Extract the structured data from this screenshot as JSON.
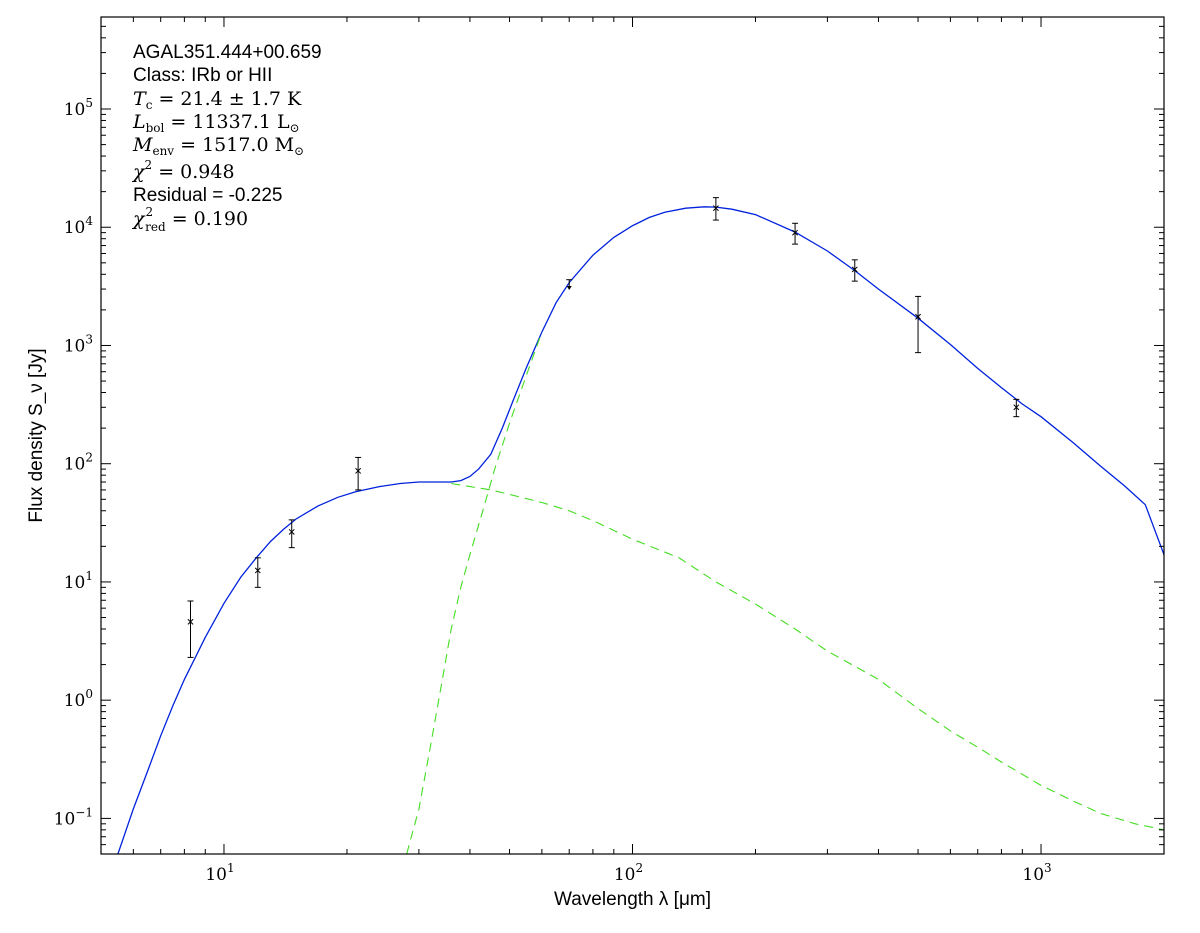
{
  "chart_data": {
    "type": "scatter",
    "title": "",
    "xlabel": "Wavelength λ [μm]",
    "ylabel": "Flux density S_ν [Jy]",
    "xscale": "log",
    "yscale": "log",
    "xlim": [
      5,
      2000
    ],
    "ylim": [
      0.05,
      600000
    ],
    "grid": false,
    "legend": "none",
    "x_ticks": [
      {
        "value": 10,
        "base": "10",
        "exp": "1"
      },
      {
        "value": 100,
        "base": "10",
        "exp": "2"
      },
      {
        "value": 1000,
        "base": "10",
        "exp": "3"
      }
    ],
    "y_ticks": [
      {
        "value": 0.1,
        "base": "10",
        "exp": "−1"
      },
      {
        "value": 1,
        "base": "10",
        "exp": "0"
      },
      {
        "value": 10,
        "base": "10",
        "exp": "1"
      },
      {
        "value": 100,
        "base": "10",
        "exp": "2"
      },
      {
        "value": 1000,
        "base": "10",
        "exp": "3"
      },
      {
        "value": 10000,
        "base": "10",
        "exp": "4"
      },
      {
        "value": 100000,
        "base": "10",
        "exp": "5"
      }
    ],
    "annotations": {
      "source": "AGAL351.444+00.659",
      "class": "Class: IRb or HII",
      "tc": {
        "sym": "T",
        "sub": "c",
        "text": " = 21.4 ± 1.7 K"
      },
      "lbol": {
        "sym": "L",
        "sub": "bol",
        "text": " = 11337.1 L",
        "sub2": "⊙"
      },
      "menv": {
        "sym": "M",
        "sub": "env",
        "text": " = 1517.0 M",
        "sub2": "⊙"
      },
      "chi2": {
        "sym": "χ",
        "sup": "2",
        "text": " = 0.948"
      },
      "residual": "Residual = -0.225",
      "chi2red": {
        "sym": "χ",
        "sup": "2",
        "sub": "red",
        "text": " = 0.190"
      }
    },
    "points": [
      {
        "x": 8.28,
        "y": 4.6,
        "y_low": 2.3,
        "y_high": 6.9,
        "marker": "x"
      },
      {
        "x": 12.1,
        "y": 12.5,
        "y_low": 9.0,
        "y_high": 16.0,
        "marker": "x"
      },
      {
        "x": 14.65,
        "y": 26.5,
        "y_low": 19.5,
        "y_high": 33.5,
        "marker": "x"
      },
      {
        "x": 21.3,
        "y": 87,
        "y_low": 60,
        "y_high": 113,
        "marker": "x"
      },
      {
        "x": 70,
        "y": 3600,
        "y_low": 3000,
        "marker": "upper-limit"
      },
      {
        "x": 160,
        "y": 14500,
        "y_low": 11500,
        "y_high": 17800,
        "marker": "x"
      },
      {
        "x": 250,
        "y": 9000,
        "y_low": 7200,
        "y_high": 10800,
        "marker": "x"
      },
      {
        "x": 350,
        "y": 4400,
        "y_low": 3500,
        "y_high": 5300,
        "marker": "x"
      },
      {
        "x": 500,
        "y": 1750,
        "y_low": 870,
        "y_high": 2600,
        "marker": "x"
      },
      {
        "x": 870,
        "y": 300,
        "y_low": 250,
        "y_high": 350,
        "marker": "x"
      }
    ],
    "lines": [
      {
        "role": "total-model",
        "color": "#0022dd",
        "style": "solid",
        "x": [
          5.5,
          6,
          6.5,
          7,
          7.5,
          8,
          9,
          10,
          11,
          12,
          13,
          14,
          15,
          17,
          19,
          21,
          24,
          27,
          30,
          33,
          36,
          38,
          40,
          42,
          45,
          48,
          51,
          55,
          60,
          65,
          70,
          80,
          90,
          100,
          110,
          120,
          135,
          150,
          160,
          175,
          200,
          250,
          300,
          350,
          400,
          500,
          600,
          700,
          800,
          900,
          1000,
          1200,
          1400,
          1600,
          1800,
          2000
        ],
        "y": [
          0.05,
          0.12,
          0.25,
          0.5,
          0.9,
          1.5,
          3.4,
          6.6,
          11,
          16,
          22,
          28,
          34,
          44,
          52,
          58,
          64,
          68,
          70,
          70,
          70,
          72,
          78,
          90,
          120,
          200,
          340,
          650,
          1300,
          2300,
          3400,
          5800,
          8200,
          10300,
          12100,
          13400,
          14500,
          14900,
          14800,
          14200,
          12800,
          9100,
          6300,
          4300,
          3000,
          1700,
          1020,
          640,
          440,
          320,
          250,
          150,
          95,
          65,
          45,
          17
        ]
      },
      {
        "role": "warm-component",
        "color": "#44dd22",
        "style": "dashed",
        "x": [
          36,
          40,
          45,
          50,
          60,
          70,
          80,
          100,
          130,
          160,
          200,
          250,
          300,
          400,
          500,
          600,
          700,
          800,
          1000,
          1200,
          1400,
          1700,
          2000
        ],
        "y": [
          68,
          64,
          60,
          55,
          47,
          40,
          33,
          23,
          16,
          10,
          6.5,
          4,
          2.6,
          1.5,
          0.85,
          0.55,
          0.4,
          0.3,
          0.19,
          0.14,
          0.11,
          0.09,
          0.08
        ]
      },
      {
        "role": "cold-component",
        "color": "#44dd22",
        "style": "dashed",
        "x": [
          28,
          30,
          32,
          34,
          36,
          38,
          40,
          43,
          46,
          50,
          55,
          60
        ],
        "y": [
          0.05,
          0.12,
          0.4,
          1.3,
          4,
          9,
          17,
          40,
          90,
          220,
          560,
          1300
        ]
      }
    ]
  }
}
